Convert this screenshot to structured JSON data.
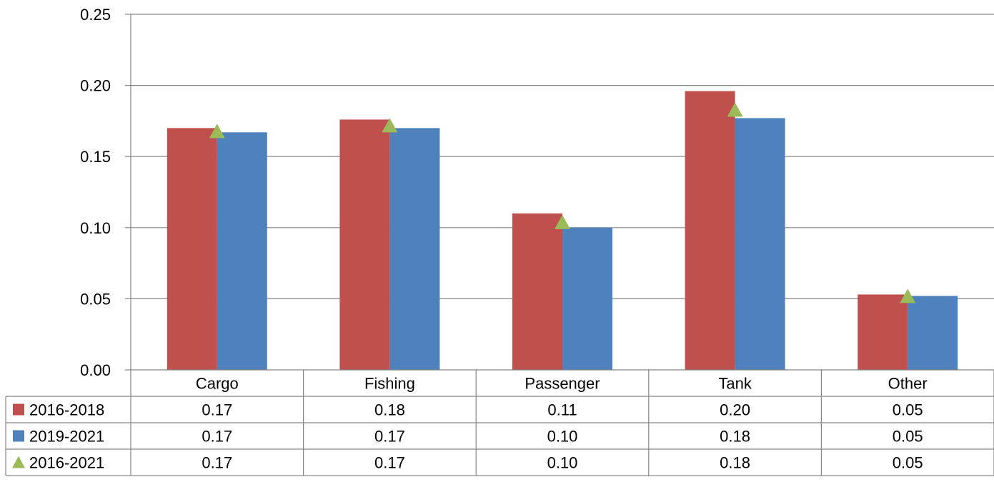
{
  "chart_data": {
    "type": "bar",
    "categories": [
      "Cargo",
      "Fishing",
      "Passenger",
      "Tank",
      "Other"
    ],
    "ylim": [
      0,
      0.25
    ],
    "yticks": [
      "0.00",
      "0.05",
      "0.10",
      "0.15",
      "0.20",
      "0.25"
    ],
    "ytick_values": [
      0,
      0.05,
      0.1,
      0.15,
      0.2,
      0.25
    ],
    "grid": true,
    "legend_placement": "data-table-left",
    "series": [
      {
        "name": "2016-2018",
        "type": "bar",
        "color": "#c0504d",
        "values": [
          0.17,
          0.176,
          0.11,
          0.196,
          0.053
        ],
        "table_labels": [
          "0.17",
          "0.18",
          "0.11",
          "0.20",
          "0.05"
        ]
      },
      {
        "name": "2019-2021",
        "type": "bar",
        "color": "#4f81bd",
        "values": [
          0.167,
          0.17,
          0.1,
          0.177,
          0.052
        ],
        "table_labels": [
          "0.17",
          "0.17",
          "0.10",
          "0.18",
          "0.05"
        ]
      },
      {
        "name": "2016-2021",
        "type": "marker-triangle",
        "color": "#9bbb59",
        "values": [
          0.168,
          0.172,
          0.104,
          0.183,
          0.052
        ],
        "table_labels": [
          "0.17",
          "0.17",
          "0.10",
          "0.18",
          "0.05"
        ]
      }
    ]
  }
}
